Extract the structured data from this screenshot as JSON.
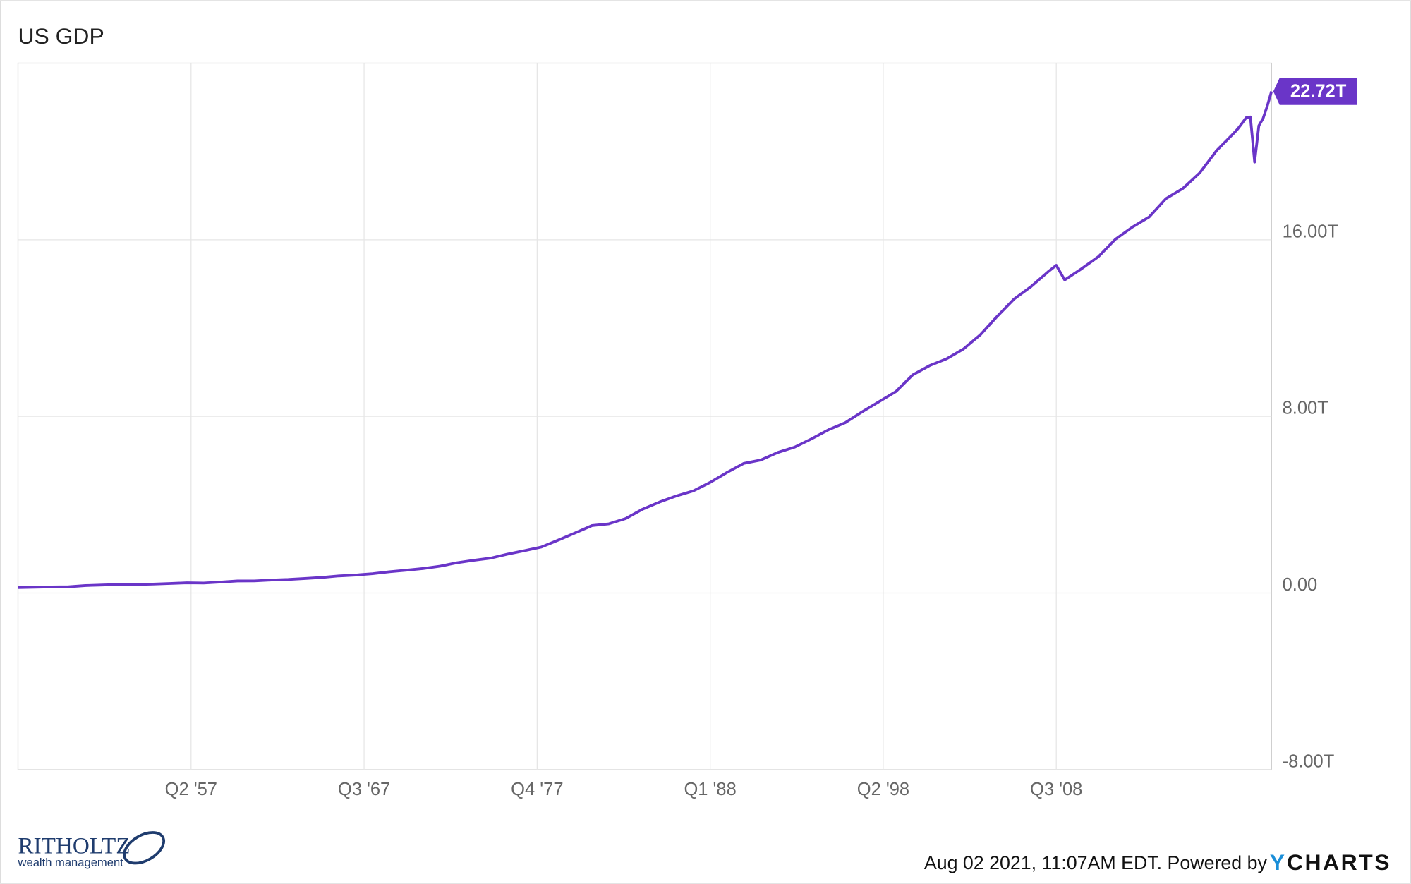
{
  "chart_data": {
    "type": "line",
    "title": "US GDP",
    "x": [
      "Q1 '47",
      "Q1 '48",
      "Q1 '49",
      "Q1 '50",
      "Q1 '51",
      "Q1 '52",
      "Q1 '53",
      "Q1 '54",
      "Q1 '55",
      "Q1 '56",
      "Q1 '57",
      "Q1 '58",
      "Q1 '59",
      "Q1 '60",
      "Q1 '61",
      "Q1 '62",
      "Q1 '63",
      "Q1 '64",
      "Q1 '65",
      "Q1 '66",
      "Q1 '67",
      "Q1 '68",
      "Q1 '69",
      "Q1 '70",
      "Q1 '71",
      "Q1 '72",
      "Q1 '73",
      "Q1 '74",
      "Q1 '75",
      "Q1 '76",
      "Q1 '77",
      "Q1 '78",
      "Q1 '79",
      "Q1 '80",
      "Q1 '81",
      "Q1 '82",
      "Q1 '83",
      "Q1 '84",
      "Q1 '85",
      "Q1 '86",
      "Q1 '87",
      "Q1 '88",
      "Q1 '89",
      "Q1 '90",
      "Q1 '91",
      "Q1 '92",
      "Q1 '93",
      "Q1 '94",
      "Q1 '95",
      "Q1 '96",
      "Q1 '97",
      "Q1 '98",
      "Q1 '99",
      "Q1 '00",
      "Q1 '01",
      "Q1 '02",
      "Q1 '03",
      "Q1 '04",
      "Q1 '05",
      "Q1 '06",
      "Q1 '07",
      "Q1 '08",
      "Q3 '08",
      "Q1 '09",
      "Q1 '10",
      "Q1 '11",
      "Q1 '12",
      "Q1 '13",
      "Q1 '14",
      "Q1 '15",
      "Q1 '16",
      "Q1 '17",
      "Q1 '18",
      "Q1 '19",
      "Q2 '19",
      "Q3 '19",
      "Q4 '19",
      "Q1 '20",
      "Q2 '20",
      "Q3 '20",
      "Q4 '20",
      "Q1 '21",
      "Q2 '21"
    ],
    "values": [
      0.243,
      0.26,
      0.275,
      0.281,
      0.336,
      0.36,
      0.386,
      0.385,
      0.402,
      0.43,
      0.46,
      0.451,
      0.495,
      0.544,
      0.546,
      0.586,
      0.612,
      0.655,
      0.705,
      0.773,
      0.813,
      0.873,
      0.961,
      1.031,
      1.107,
      1.213,
      1.37,
      1.482,
      1.579,
      1.761,
      1.917,
      2.08,
      2.394,
      2.719,
      3.053,
      3.132,
      3.374,
      3.795,
      4.119,
      4.395,
      4.624,
      5.008,
      5.46,
      5.873,
      6.023,
      6.363,
      6.605,
      6.98,
      7.388,
      7.714,
      8.204,
      8.663,
      9.124,
      9.881,
      10.301,
      10.605,
      11.05,
      11.694,
      12.528,
      13.314,
      13.875,
      14.54,
      14.844,
      14.178,
      14.689,
      15.238,
      16.02,
      16.57,
      17.031,
      17.864,
      18.325,
      19.03,
      20.044,
      20.814,
      21.022,
      21.272,
      21.531,
      21.561,
      19.52,
      21.17,
      21.494,
      22.061,
      22.72
    ],
    "value_labels": [
      null,
      null,
      null,
      null,
      null,
      null,
      null,
      null,
      null,
      null,
      null,
      null,
      null,
      null,
      null,
      null,
      null,
      null,
      null,
      null,
      null,
      null,
      null,
      null,
      null,
      null,
      null,
      null,
      null,
      null,
      null,
      null,
      null,
      null,
      null,
      null,
      null,
      null,
      null,
      null,
      null,
      null,
      null,
      null,
      null,
      null,
      null,
      null,
      null,
      null,
      null,
      null,
      null,
      null,
      null,
      null,
      null,
      null,
      null,
      null,
      null,
      null,
      null,
      null,
      null,
      null,
      null,
      null,
      null,
      null,
      null,
      null,
      null,
      null,
      null,
      null,
      null,
      null,
      null,
      null,
      null,
      null,
      "22.72T"
    ],
    "color": "#6a35c8",
    "xlim": [
      "Q1 '47",
      "Q2 '21"
    ],
    "xticks": [
      "Q2 '57",
      "Q3 '67",
      "Q4 '77",
      "Q1 '88",
      "Q2 '98",
      "Q3 '08"
    ],
    "ylim": [
      -8,
      24
    ],
    "yticks": [
      {
        "value": -8,
        "label": "-8.00T"
      },
      {
        "value": 0,
        "label": "0.00"
      },
      {
        "value": 8,
        "label": "8.00T"
      },
      {
        "value": 16,
        "label": "16.00T"
      }
    ],
    "grid": true
  },
  "footer": {
    "logo_name": "RITHOLTZ",
    "logo_sub": "wealth management",
    "timestamp": "Aug 02 2021, 11:07AM EDT. Powered by",
    "brand_y": "Y",
    "brand_rest": "CHARTS"
  }
}
